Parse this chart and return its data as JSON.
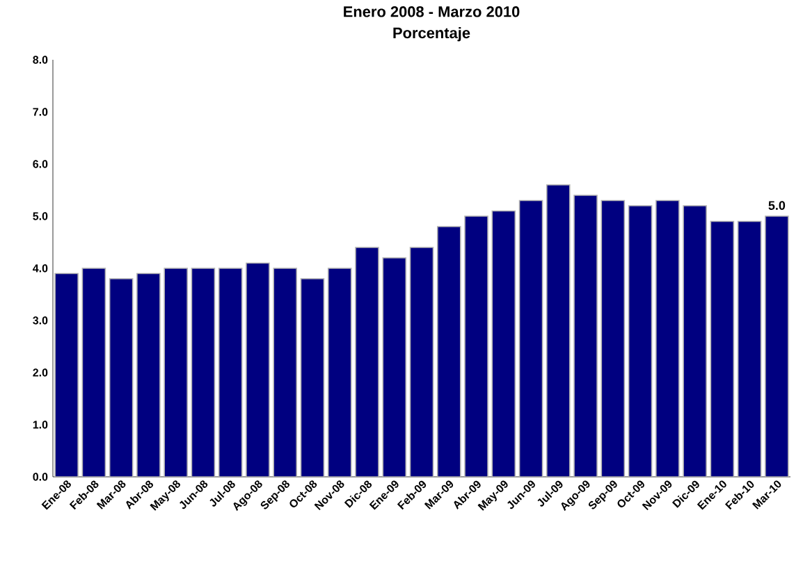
{
  "chart_data": {
    "type": "bar",
    "title": "Enero 2008 - Marzo 2010",
    "subtitle": "Porcentaje",
    "categories": [
      "Ene-08",
      "Feb-08",
      "Mar-08",
      "Abr-08",
      "May-08",
      "Jun-08",
      "Jul-08",
      "Ago-08",
      "Sep-08",
      "Oct-08",
      "Nov-08",
      "Dic-08",
      "Ene-09",
      "Feb-09",
      "Mar-09",
      "Abr-09",
      "May-09",
      "Jun-09",
      "Jul-09",
      "Ago-09",
      "Sep-09",
      "Oct-09",
      "Nov-09",
      "Dic-09",
      "Ene-10",
      "Feb-10",
      "Mar-10"
    ],
    "values": [
      3.9,
      4.0,
      3.8,
      3.9,
      4.0,
      4.0,
      4.0,
      4.1,
      4.0,
      3.8,
      4.0,
      4.4,
      4.2,
      4.4,
      4.8,
      5.0,
      5.1,
      5.3,
      5.6,
      5.4,
      5.3,
      5.2,
      5.3,
      5.2,
      4.9,
      4.9,
      5.0
    ],
    "value_labels": [
      null,
      null,
      null,
      null,
      null,
      null,
      null,
      null,
      null,
      null,
      null,
      null,
      null,
      null,
      null,
      null,
      null,
      null,
      null,
      null,
      null,
      null,
      null,
      null,
      null,
      null,
      "5.0"
    ],
    "color": "#000080",
    "ylim": [
      0,
      8
    ],
    "yticks": [
      {
        "value": 0,
        "label": "0.0"
      },
      {
        "value": 1,
        "label": "1.0"
      },
      {
        "value": 2,
        "label": "2.0"
      },
      {
        "value": 3,
        "label": "3.0"
      },
      {
        "value": 4,
        "label": "4.0"
      },
      {
        "value": 5,
        "label": "5.0"
      },
      {
        "value": 6,
        "label": "6.0"
      },
      {
        "value": 7,
        "label": "7.0"
      },
      {
        "value": 8,
        "label": "8.0"
      }
    ],
    "grid": false
  }
}
